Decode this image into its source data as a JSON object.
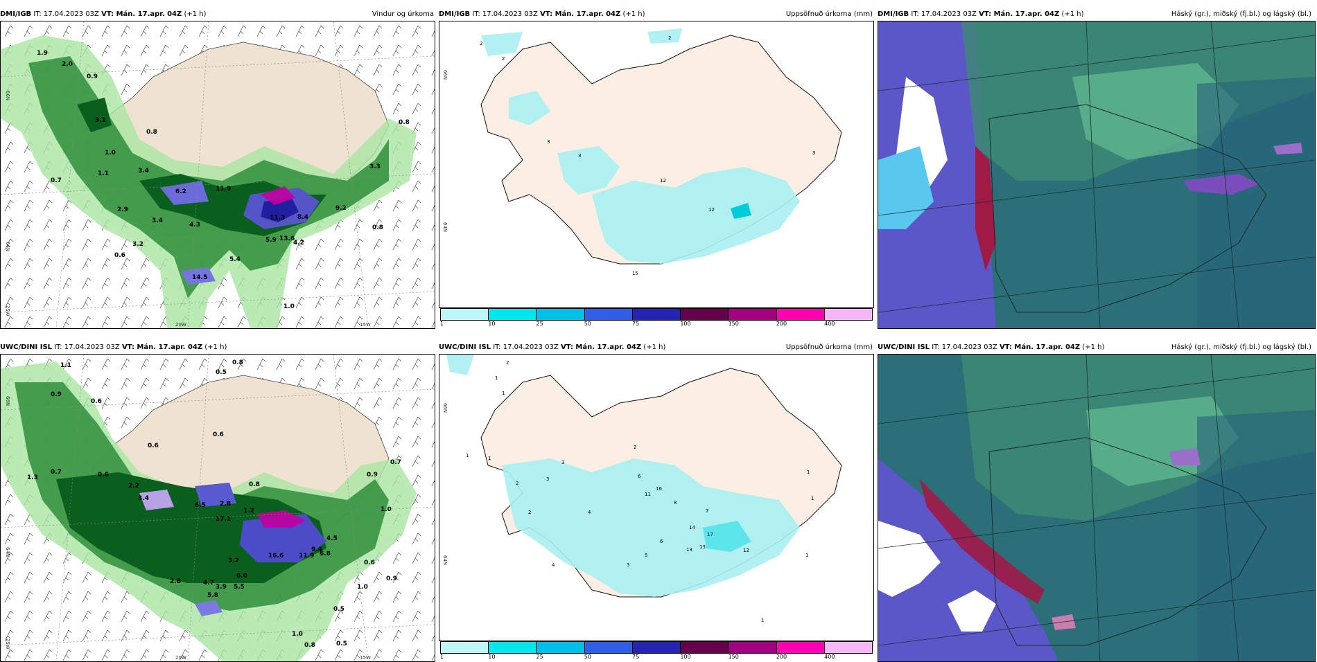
{
  "rows": [
    {
      "source": "DMI/IGB",
      "init_text": "IT: 17.04.2023 03Z",
      "valid_label": "VT: Mán. 17.apr. 04Z",
      "lead": "(+1 h)"
    },
    {
      "source": "UWC/DINI ISL",
      "init_text": "IT: 17.04.2023 03Z",
      "valid_label": "VT: Mán. 17.apr. 04Z",
      "lead": "(+1 h)"
    }
  ],
  "panel_titles": {
    "wind": "Vindur og úrkoma",
    "precip": "Uppsöfnuð úrkoma (mm)",
    "cloud": "Háský (gr.), miðský (fj.bl.) og lágský (bl.)"
  },
  "axis_labels": {
    "lat_66": "66N",
    "lat_64": "64N",
    "lat_65": "65N",
    "lon_25": "25W",
    "lon_20": "20W",
    "lon_15": "15W"
  },
  "colorbar": {
    "colors": [
      "#bdf7fa",
      "#00e8ee",
      "#00bfe8",
      "#2f5fe6",
      "#2424b0",
      "#66004a",
      "#a10080",
      "#ff00b4",
      "#f7b6f5"
    ],
    "ticks": [
      "1",
      "10",
      "25",
      "50",
      "75",
      "100",
      "150",
      "200",
      "400"
    ]
  },
  "wind_labels": {
    "top": [
      "1.9",
      "2.0",
      "0.9",
      "3.1",
      "0.8",
      "1.0",
      "1.1",
      "3.4",
      "0.7",
      "2.9",
      "3.4",
      "4.3",
      "3.2",
      "0.6",
      "6.2",
      "11.9",
      "11.3",
      "8.4",
      "9.2",
      "5.9",
      "13.6",
      "4.2",
      "0.8",
      "5.4",
      "14.5",
      "1.0",
      "0.8",
      "3.3"
    ],
    "bottom": [
      "0.8",
      "0.5",
      "1.1",
      "0.9",
      "0.6",
      "0.6",
      "0.6",
      "1.3",
      "0.7",
      "0.6",
      "2.2",
      "3.4",
      "6.5",
      "2.8",
      "17.1",
      "1.2",
      "0.8",
      "16.6",
      "11.9",
      "6.8",
      "4.5",
      "9.4",
      "3.2",
      "6.0",
      "5.5",
      "5.8",
      "3.9",
      "4.7",
      "2.8",
      "1.0",
      "0.5",
      "1.0",
      "0.8",
      "0.5",
      "0.9",
      "0.6",
      "1.0",
      "0.9",
      "0.7"
    ]
  },
  "precip_labels": {
    "top": [
      "2",
      "2",
      "2",
      "3",
      "3",
      "12",
      "12",
      "15",
      "3"
    ],
    "bottom": [
      "2",
      "1",
      "1",
      "1",
      "1",
      "2",
      "3",
      "2",
      "3",
      "4",
      "2",
      "6",
      "16",
      "11",
      "13",
      "12",
      "17",
      "13",
      "14",
      "7",
      "8",
      "5",
      "6",
      "4",
      "3",
      "1",
      "1",
      "1",
      "1"
    ]
  }
}
